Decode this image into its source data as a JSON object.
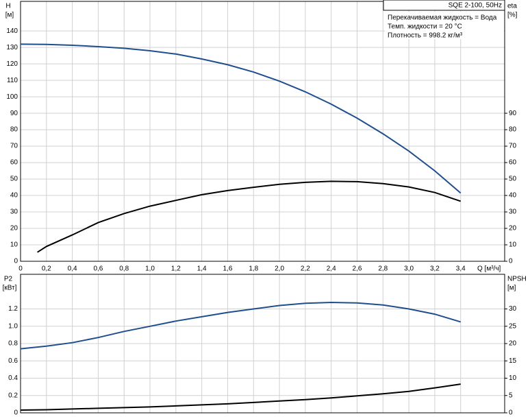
{
  "chart_data": [
    {
      "type": "line",
      "title": "SQE 2-100, 50Hz",
      "annotations": [
        "Перекачиваемая жидкость = Вода",
        "Темп. жидкости = 20 °C",
        "Плотность = 998.2 кг/м³"
      ],
      "x_label": "Q [м³/ч]",
      "y_label": "H",
      "y_unit": "[м]",
      "y2_label": "eta",
      "y2_unit": "[%]",
      "xlim": [
        0,
        3.74
      ],
      "xticks": [
        0,
        {
          "value": 0.2,
          "label": "0,2"
        },
        {
          "value": 0.4,
          "label": "0,4"
        },
        {
          "value": 0.6,
          "label": "0,6"
        },
        {
          "value": 0.8,
          "label": "0,8"
        },
        {
          "value": 1.0,
          "label": "1,0"
        },
        {
          "value": 1.2,
          "label": "1,2"
        },
        {
          "value": 1.4,
          "label": "1,4"
        },
        {
          "value": 1.6,
          "label": "1,6"
        },
        {
          "value": 1.8,
          "label": "1,8"
        },
        {
          "value": 2.0,
          "label": "2,0"
        },
        {
          "value": 2.2,
          "label": "2,2"
        },
        {
          "value": 2.4,
          "label": "2,4"
        },
        {
          "value": 2.6,
          "label": "2,6"
        },
        {
          "value": 2.8,
          "label": "2,8"
        },
        {
          "value": 3.0,
          "label": "3,0"
        },
        {
          "value": 3.2,
          "label": "3,2"
        },
        {
          "value": 3.4,
          "label": "3,4"
        }
      ],
      "ylim": [
        0,
        158
      ],
      "yticks": [
        0,
        10,
        20,
        30,
        40,
        50,
        60,
        70,
        80,
        90,
        100,
        110,
        120,
        130,
        140
      ],
      "y2lim": [
        0,
        158
      ],
      "y2ticks": [
        0,
        10,
        20,
        30,
        40,
        50,
        60,
        70,
        80,
        90
      ],
      "grid": true,
      "series": [
        {
          "color": "#1f4e8c",
          "axis": "y",
          "x": [
            0,
            0.2,
            0.4,
            0.6,
            0.8,
            1.0,
            1.2,
            1.4,
            1.6,
            1.8,
            2.0,
            2.2,
            2.4,
            2.6,
            2.8,
            3.0,
            3.2,
            3.4
          ],
          "values": [
            132,
            131.8,
            131.3,
            130.5,
            129.5,
            128,
            126,
            123,
            119.5,
            115,
            109.5,
            103,
            95.5,
            87,
            77.5,
            67,
            55,
            41.5
          ]
        },
        {
          "color": "#000000",
          "axis": "y2",
          "x": [
            0.13,
            0.2,
            0.4,
            0.6,
            0.8,
            1.0,
            1.2,
            1.4,
            1.6,
            1.8,
            2.0,
            2.2,
            2.4,
            2.6,
            2.8,
            3.0,
            3.2,
            3.4
          ],
          "values": [
            5.5,
            9,
            16,
            23.5,
            29,
            33.5,
            37,
            40.5,
            43,
            45,
            46.8,
            48,
            48.6,
            48.4,
            47.2,
            45.2,
            41.8,
            36.5
          ]
        }
      ]
    },
    {
      "type": "line",
      "y_label": "P2",
      "y_unit": "[кВт]",
      "y2_label": "NPSH",
      "y2_unit": "[м]",
      "ylim": [
        0,
        1.6
      ],
      "yticks": [
        0,
        0.2,
        0.4,
        0.6,
        0.8,
        {
          "value": 1.0,
          "label": "1.0"
        },
        1.2
      ],
      "y2lim": [
        0,
        40
      ],
      "y2ticks": [
        0,
        5,
        10,
        15,
        20,
        25,
        30
      ],
      "grid": true,
      "series": [
        {
          "color": "#1f4e8c",
          "axis": "y",
          "x": [
            0,
            0.2,
            0.4,
            0.6,
            0.8,
            1.0,
            1.2,
            1.4,
            1.6,
            1.8,
            2.0,
            2.2,
            2.4,
            2.6,
            2.8,
            3.0,
            3.2,
            3.4
          ],
          "values": [
            0.74,
            0.77,
            0.81,
            0.87,
            0.94,
            1.0,
            1.06,
            1.11,
            1.16,
            1.2,
            1.24,
            1.265,
            1.275,
            1.27,
            1.245,
            1.2,
            1.14,
            1.05
          ]
        },
        {
          "color": "#000000",
          "axis": "y2",
          "x": [
            0,
            0.2,
            0.4,
            0.6,
            0.8,
            1.0,
            1.2,
            1.4,
            1.6,
            1.8,
            2.0,
            2.2,
            2.4,
            2.6,
            2.8,
            3.0,
            3.2,
            3.4
          ],
          "values": [
            0.8,
            0.9,
            1.1,
            1.3,
            1.5,
            1.7,
            2.0,
            2.3,
            2.6,
            3.0,
            3.4,
            3.8,
            4.3,
            4.9,
            5.5,
            6.2,
            7.2,
            8.3
          ]
        }
      ]
    }
  ]
}
